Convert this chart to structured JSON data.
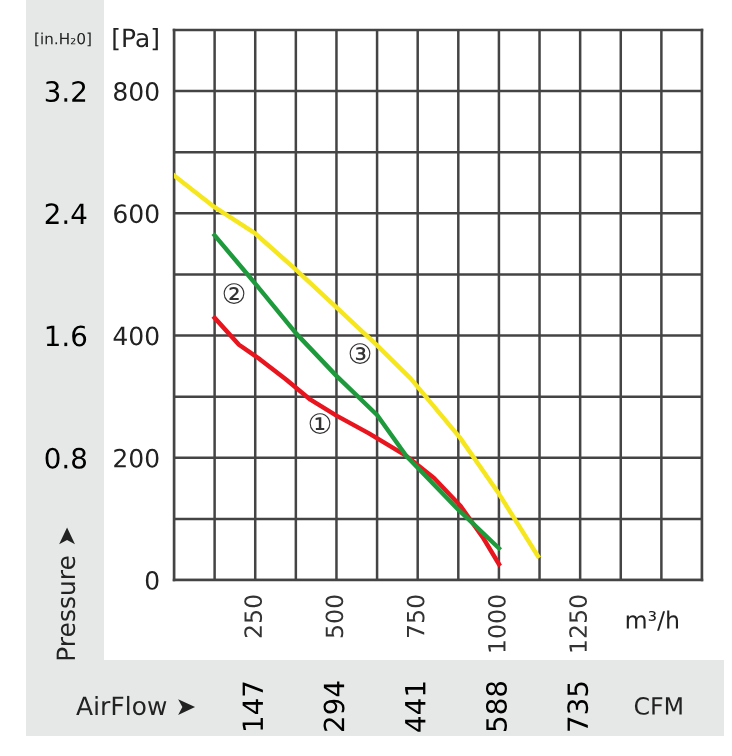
{
  "chart_data": {
    "type": "line",
    "xlabel": "m³/h",
    "x2label": "CFM",
    "ylabel": "[Pa]",
    "y2label": "[in.H₂0]",
    "xlim": [
      0,
      1625
    ],
    "xticks": [
      {
        "value": 0,
        "label": null
      },
      {
        "value": 125,
        "label": null
      },
      250,
      {
        "value": 375,
        "label": null
      },
      500,
      {
        "value": 625,
        "label": null
      },
      750,
      {
        "value": 875,
        "label": null
      },
      1000,
      {
        "value": 1125,
        "label": null
      },
      1250,
      {
        "value": 1375,
        "label": null
      },
      {
        "value": 1500,
        "label": null
      },
      {
        "value": 1625,
        "label": null
      }
    ],
    "ylim": [
      0,
      900
    ],
    "yticks": [
      0,
      {
        "value": 100,
        "label": null
      },
      200,
      {
        "value": 300,
        "label": null
      },
      400,
      {
        "value": 500,
        "label": null
      },
      600,
      {
        "value": 700,
        "label": null
      },
      800
    ],
    "y2lim": [
      0,
      3.6
    ],
    "y2ticks": [
      0.8,
      1.6,
      2.4,
      3.2
    ],
    "x2lim": [
      0,
      955.5
    ],
    "x2ticks": [
      147,
      294,
      441,
      588,
      735
    ],
    "grid": true,
    "marker": "none",
    "line_style": "solid",
    "series": [
      {
        "color": "#e8141e",
        "x": [
          125,
          200,
          265,
          345,
          420,
          500,
          600,
          715,
          800,
          882,
          950,
          1000
        ],
        "values": [
          429,
          385,
          361,
          328,
          295,
          269,
          240,
          203,
          167,
          121,
          70,
          26
        ]
      },
      {
        "color": "#1e9a3c",
        "x": [
          125,
          250,
          375,
          500,
          625,
          715,
          875,
          1000
        ],
        "values": [
          564,
          485,
          404,
          334,
          270,
          203,
          115,
          52
        ]
      },
      {
        "color": "#f5e61e",
        "x": [
          0,
          125,
          250,
          375,
          500,
          625,
          728,
          880,
          1000,
          1120
        ],
        "values": [
          662,
          610,
          567,
          508,
          446,
          384,
          330,
          233,
          141,
          39
        ]
      }
    ],
    "annotations": [
      "①",
      "②",
      "③",
      "Pressure ➤",
      "AirFlow ➤"
    ]
  }
}
